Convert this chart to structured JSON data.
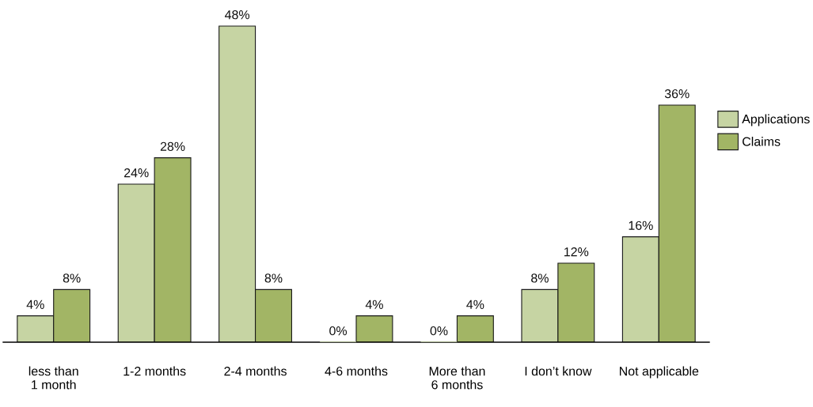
{
  "chart_data": {
    "type": "bar",
    "categories": [
      "less than\n1 month",
      "1-2 months",
      "2-4 months",
      "4-6 months",
      "More than\n6 months",
      "I don’t know",
      "Not applicable"
    ],
    "series": [
      {
        "name": "Applications",
        "color": "#c6d4a3",
        "values": [
          4,
          24,
          48,
          0,
          0,
          8,
          16
        ],
        "value_labels": [
          "4%",
          "24%",
          "48%",
          "0%",
          "0%",
          "8%",
          "16%"
        ]
      },
      {
        "name": "Claims",
        "color": "#a2b565",
        "values": [
          8,
          28,
          8,
          4,
          4,
          12,
          36
        ],
        "value_labels": [
          "8%",
          "28%",
          "8%",
          "4%",
          "4%",
          "12%",
          "36%"
        ]
      }
    ],
    "legend": "right",
    "grid": false
  }
}
